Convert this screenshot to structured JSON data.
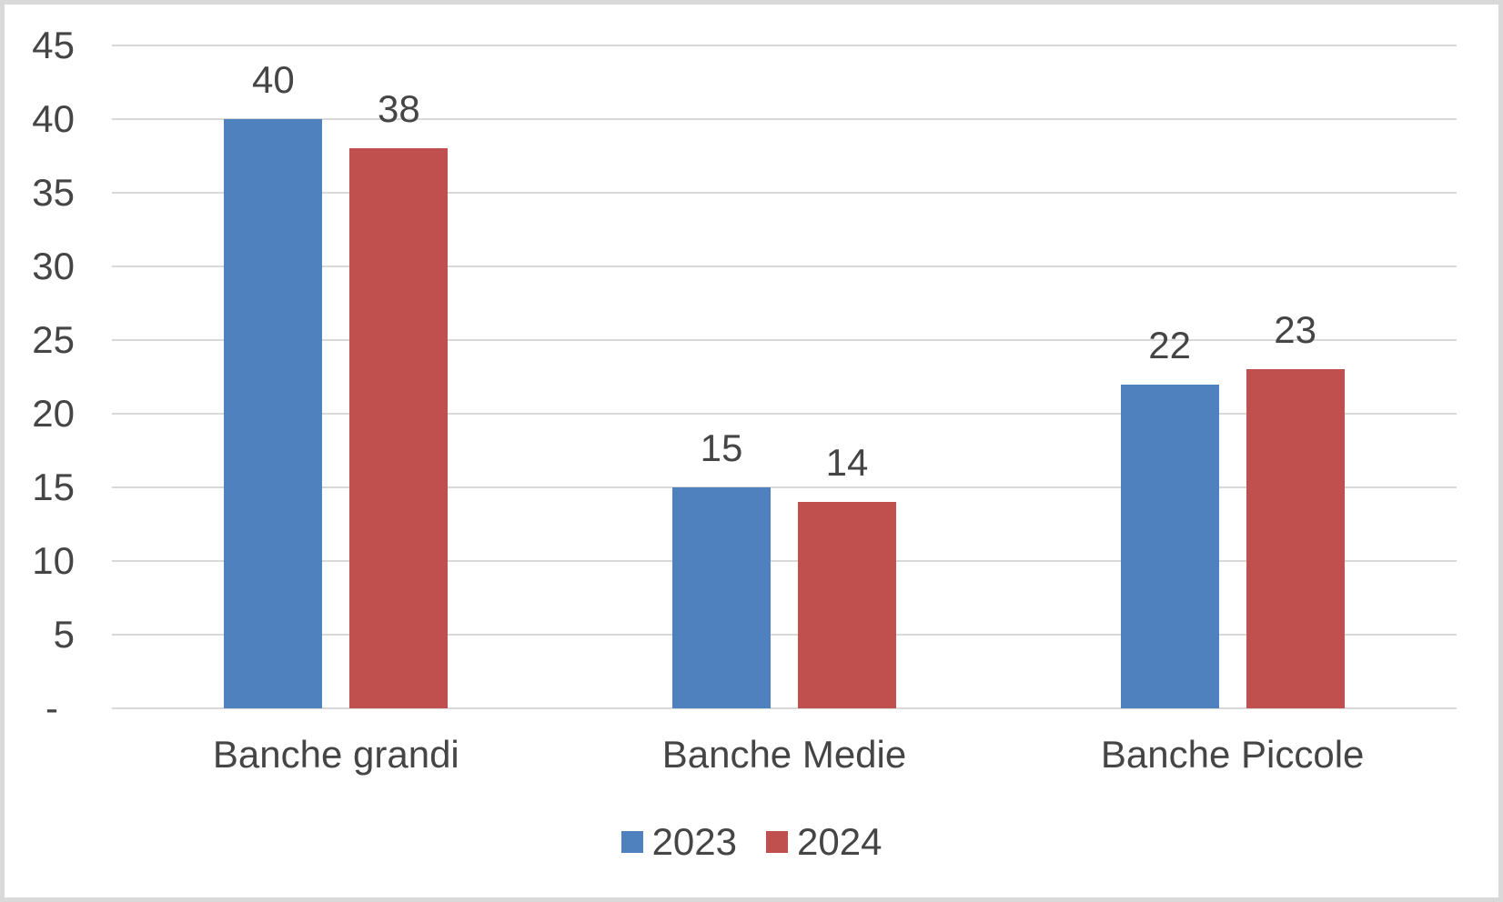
{
  "chart_data": {
    "type": "bar",
    "title": "",
    "xlabel": "",
    "ylabel": "",
    "categories": [
      "Banche grandi",
      "Banche Medie",
      "Banche Piccole"
    ],
    "series": [
      {
        "name": "2023",
        "color": "#4E81BD",
        "values": [
          40,
          15,
          22
        ]
      },
      {
        "name": "2024",
        "color": "#C0504D",
        "values": [
          38,
          14,
          23
        ]
      }
    ],
    "ylim": [
      0,
      45
    ],
    "ytick_step": 5,
    "ytick_labels": [
      "-",
      "5",
      "10",
      "15",
      "20",
      "25",
      "30",
      "35",
      "40",
      "45"
    ],
    "grid": true,
    "legend_position": "bottom",
    "colors": {
      "grid": "#D9D9D9",
      "border": "#D9D9D9",
      "text": "#454545",
      "background": "#FFFFFF",
      "series_2023": "#4E81BD",
      "series_2024": "#C0504D"
    }
  }
}
